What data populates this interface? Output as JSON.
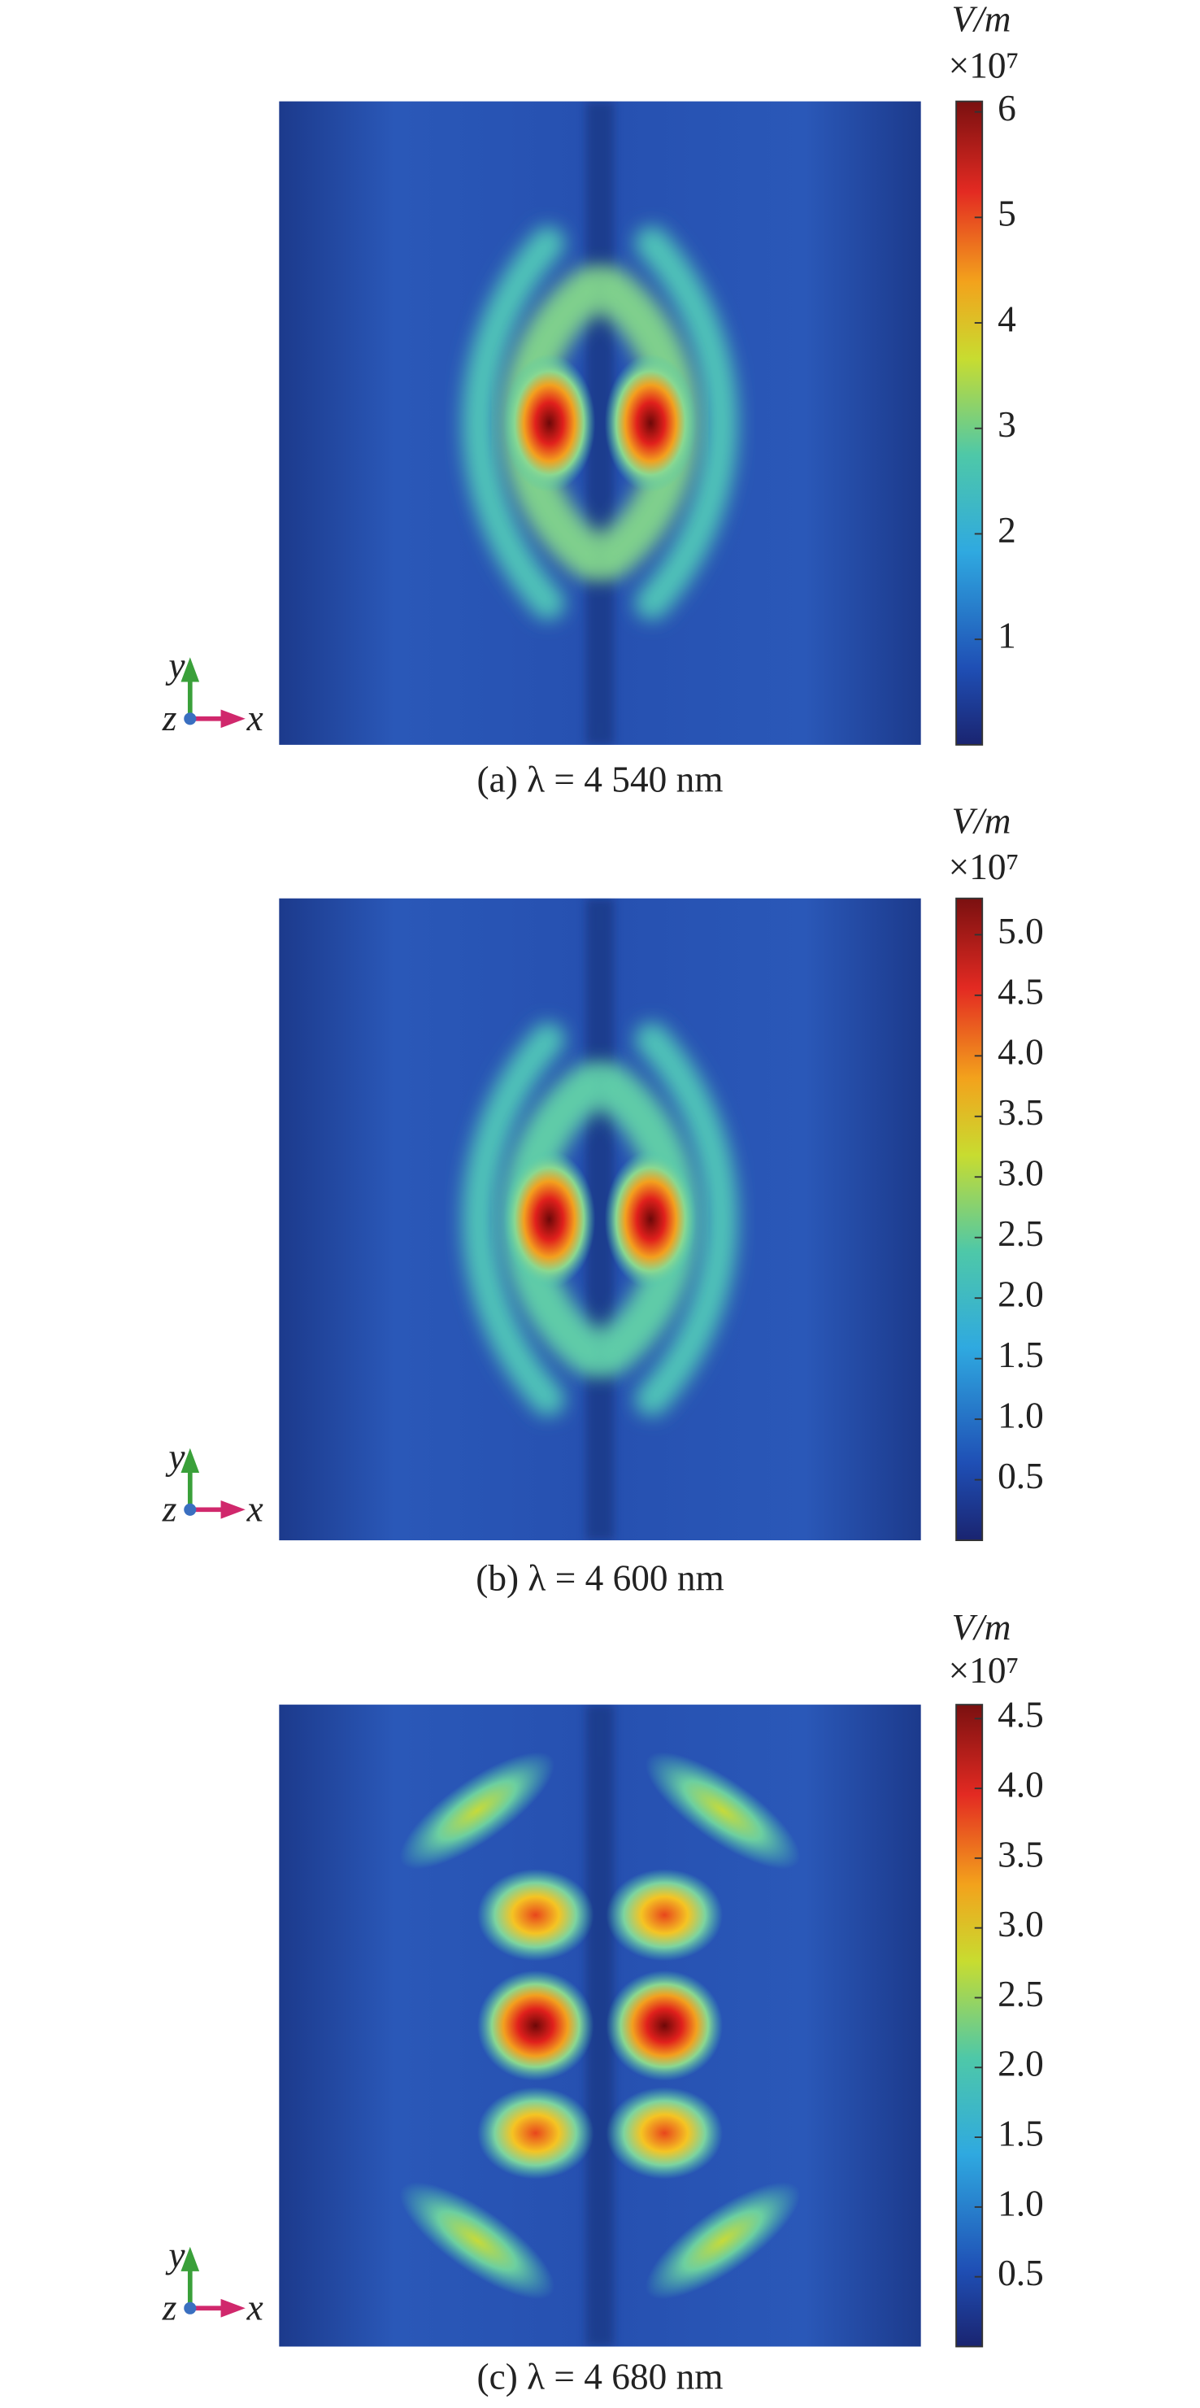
{
  "chart_data": [
    {
      "type": "heatmap",
      "caption": "(a) λ = 4 540 nm",
      "colorbar": {
        "label": "V/m",
        "scale": "×10⁷",
        "zlim": [
          0,
          6.1
        ],
        "ticks": [
          1,
          2,
          3,
          4,
          5,
          6
        ]
      },
      "axes": {
        "y": "y",
        "z": "z",
        "x": "x"
      }
    },
    {
      "type": "heatmap",
      "caption": "(b) λ = 4 600 nm",
      "colorbar": {
        "label": "V/m",
        "scale": "×10⁷",
        "zlim": [
          0,
          5.3
        ],
        "ticks": [
          0.5,
          {
            "value": 1,
            "label": "1.0"
          },
          1.5,
          {
            "value": 2,
            "label": "2.0"
          },
          2.5,
          {
            "value": 3,
            "label": "3.0"
          },
          3.5,
          {
            "value": 4,
            "label": "4.0"
          },
          4.5,
          {
            "value": 5,
            "label": "5.0"
          }
        ]
      },
      "axes": {
        "y": "y",
        "z": "z",
        "x": "x"
      }
    },
    {
      "type": "heatmap",
      "caption": "(c) λ = 4 680 nm",
      "colorbar": {
        "label": "V/m",
        "scale": "×10⁷",
        "zlim": [
          0,
          4.6
        ],
        "ticks": [
          0.5,
          {
            "value": 1,
            "label": "1.0"
          },
          1.5,
          {
            "value": 2,
            "label": "2.0"
          },
          2.5,
          {
            "value": 3,
            "label": "3.0"
          },
          3.5,
          {
            "value": 4,
            "label": "4.0"
          },
          4.5
        ]
      },
      "axes": {
        "y": "y",
        "z": "z",
        "x": "x"
      }
    }
  ]
}
